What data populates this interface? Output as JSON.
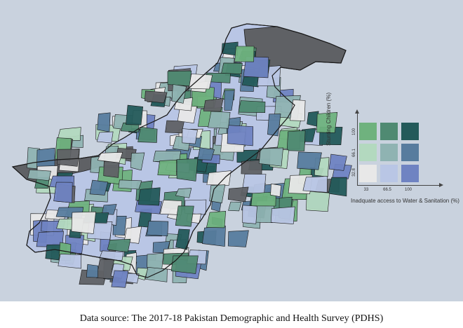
{
  "caption": "Data source: The 2017-18 Pakistan Demographic and Health Survey (PDHS)",
  "legend": {
    "y_label": "Stunting Children (%)",
    "x_label": "Inadquate access to Water & Sanitation (%)",
    "y_ticks": [
      "32.8",
      "66.1",
      "100"
    ],
    "x_ticks": [
      "33",
      "66.5",
      "100"
    ],
    "grid_colors": [
      [
        "#e8e8e8",
        "#b9c6e5",
        "#6f83c2"
      ],
      [
        "#b3d9bf",
        "#8fb3b2",
        "#577c9e"
      ],
      [
        "#6fb27e",
        "#4f8a72",
        "#235a5a"
      ]
    ]
  },
  "colors": {
    "background": "#c9d2de",
    "no_data": "#5f6165",
    "border": "#1a1a1a"
  }
}
